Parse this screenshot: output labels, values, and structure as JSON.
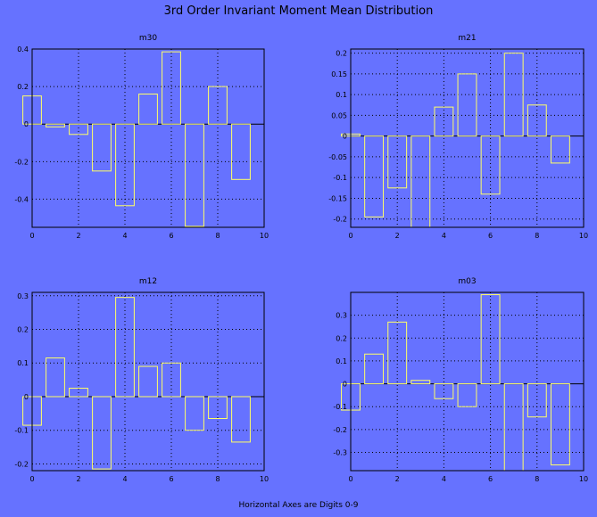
{
  "figure": {
    "title": "3rd Order Invariant Moment Mean Distribution",
    "footer": "Horizontal Axes are Digits 0-9"
  },
  "colors": {
    "background": "#6672ff",
    "bar_outline": "#ffff66",
    "axes": "#000000"
  },
  "chart_data": [
    {
      "type": "bar",
      "title": "m30",
      "x": [
        0,
        1,
        2,
        3,
        4,
        5,
        6,
        7,
        8,
        9
      ],
      "values": [
        0.15,
        -0.015,
        -0.055,
        -0.25,
        -0.435,
        0.16,
        0.385,
        -0.545,
        0.2,
        -0.295
      ],
      "xlim": [
        0,
        10
      ],
      "ylim": [
        -0.55,
        0.4
      ],
      "xticks": [
        0,
        2,
        4,
        6,
        8,
        10
      ],
      "xtick_labels": [
        "0",
        "2",
        "4",
        "6",
        "8",
        "10"
      ],
      "yticks": [
        -0.4,
        -0.2,
        0,
        0.2,
        0.4
      ],
      "ytick_labels": [
        "-0.4",
        "-0.2",
        "0",
        "0.2",
        "0.4"
      ],
      "grid": true
    },
    {
      "type": "bar",
      "title": "m21",
      "x": [
        0,
        1,
        2,
        3,
        4,
        5,
        6,
        7,
        8,
        9
      ],
      "values": [
        0.005,
        -0.195,
        -0.125,
        -0.22,
        0.07,
        0.15,
        -0.14,
        0.2,
        0.075,
        -0.065
      ],
      "xlim": [
        0,
        10
      ],
      "ylim": [
        -0.22,
        0.21
      ],
      "xticks": [
        0,
        2,
        4,
        6,
        8,
        10
      ],
      "xtick_labels": [
        "0",
        "2",
        "4",
        "6",
        "8",
        "10"
      ],
      "yticks": [
        -0.2,
        -0.15,
        -0.1,
        -0.05,
        0,
        0.05,
        0.1,
        0.15,
        0.2
      ],
      "ytick_labels": [
        "-0.2",
        "-0.15",
        "-0.1",
        "-0.05",
        "0",
        "0.05",
        "0.1",
        "0.15",
        "0.2"
      ],
      "grid": true
    },
    {
      "type": "bar",
      "title": "m12",
      "x": [
        0,
        1,
        2,
        3,
        4,
        5,
        6,
        7,
        8,
        9
      ],
      "values": [
        -0.085,
        0.115,
        0.025,
        -0.215,
        0.295,
        0.09,
        0.1,
        -0.1,
        -0.065,
        -0.135
      ],
      "xlim": [
        0,
        10
      ],
      "ylim": [
        -0.22,
        0.31
      ],
      "xticks": [
        0,
        2,
        4,
        6,
        8,
        10
      ],
      "xtick_labels": [
        "0",
        "2",
        "4",
        "6",
        "8",
        "10"
      ],
      "yticks": [
        -0.2,
        -0.1,
        0,
        0.1,
        0.2,
        0.3
      ],
      "ytick_labels": [
        "-0.2",
        "-0.1",
        "0",
        "0.1",
        "0.2",
        "0.3"
      ],
      "grid": true
    },
    {
      "type": "bar",
      "title": "m03",
      "x": [
        0,
        1,
        2,
        3,
        4,
        5,
        6,
        7,
        8,
        9
      ],
      "values": [
        -0.115,
        0.13,
        0.27,
        0.015,
        -0.065,
        -0.1,
        0.39,
        -0.38,
        -0.145,
        -0.355
      ],
      "xlim": [
        0,
        10
      ],
      "ylim": [
        -0.38,
        0.4
      ],
      "xticks": [
        0,
        2,
        4,
        6,
        8,
        10
      ],
      "xtick_labels": [
        "0",
        "2",
        "4",
        "6",
        "8",
        "10"
      ],
      "yticks": [
        -0.3,
        -0.2,
        -0.1,
        0,
        0.1,
        0.2,
        0.3
      ],
      "ytick_labels": [
        "-0.3",
        "-0.2",
        "-0.1",
        "0",
        "0.1",
        "0.2",
        "0.3"
      ],
      "grid": true
    }
  ]
}
